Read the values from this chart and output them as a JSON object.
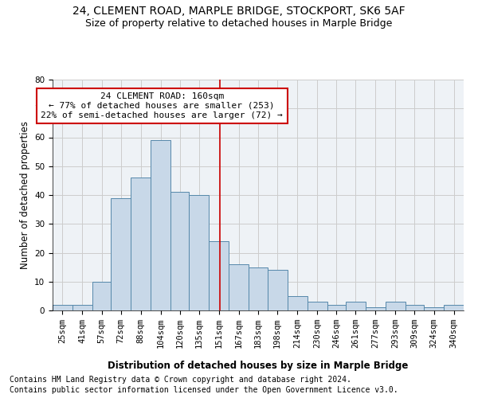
{
  "title": "24, CLEMENT ROAD, MARPLE BRIDGE, STOCKPORT, SK6 5AF",
  "subtitle": "Size of property relative to detached houses in Marple Bridge",
  "xlabel": "Distribution of detached houses by size in Marple Bridge",
  "ylabel": "Number of detached properties",
  "footnote1": "Contains HM Land Registry data © Crown copyright and database right 2024.",
  "footnote2": "Contains public sector information licensed under the Open Government Licence v3.0.",
  "annotation_title": "24 CLEMENT ROAD: 160sqm",
  "annotation_line1": "← 77% of detached houses are smaller (253)",
  "annotation_line2": "22% of semi-detached houses are larger (72) →",
  "property_size": 160,
  "bar_categories": [
    "25sqm",
    "41sqm",
    "57sqm",
    "72sqm",
    "88sqm",
    "104sqm",
    "120sqm",
    "135sqm",
    "151sqm",
    "167sqm",
    "183sqm",
    "198sqm",
    "214sqm",
    "230sqm",
    "246sqm",
    "261sqm",
    "277sqm",
    "293sqm",
    "309sqm",
    "324sqm",
    "340sqm"
  ],
  "bar_values": [
    2,
    2,
    10,
    39,
    46,
    59,
    41,
    40,
    24,
    16,
    15,
    14,
    5,
    3,
    2,
    3,
    1,
    3,
    2,
    1,
    2
  ],
  "bar_left_edges": [
    25,
    41,
    57,
    72,
    88,
    104,
    120,
    135,
    151,
    167,
    183,
    198,
    214,
    230,
    246,
    261,
    277,
    293,
    309,
    324,
    340
  ],
  "bar_widths": [
    16,
    16,
    15,
    16,
    16,
    16,
    15,
    16,
    16,
    16,
    15,
    16,
    16,
    16,
    15,
    16,
    16,
    16,
    15,
    16,
    16
  ],
  "bar_color": "#c8d8e8",
  "bar_edgecolor": "#5588aa",
  "vline_x": 160,
  "vline_color": "#cc0000",
  "annotation_box_edgecolor": "#cc0000",
  "ylim": [
    0,
    80
  ],
  "yticks": [
    0,
    10,
    20,
    30,
    40,
    50,
    60,
    70,
    80
  ],
  "grid_color": "#cccccc",
  "bg_color": "#eef2f6",
  "title_fontsize": 10,
  "subtitle_fontsize": 9,
  "axis_label_fontsize": 8.5,
  "tick_fontsize": 7.5,
  "annotation_fontsize": 8,
  "footnote_fontsize": 7
}
